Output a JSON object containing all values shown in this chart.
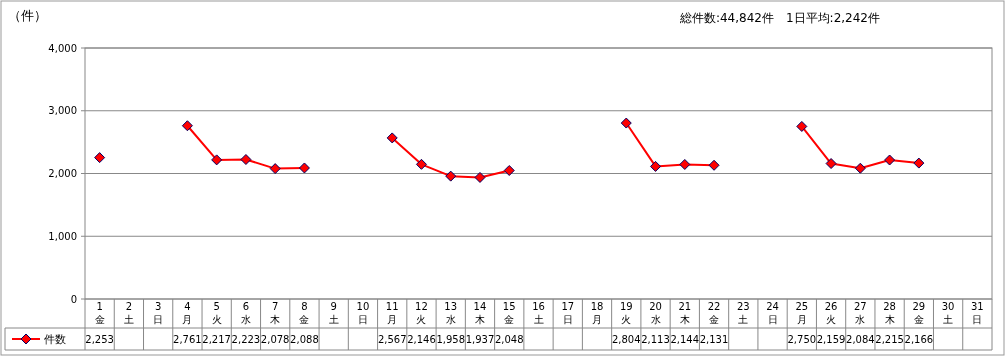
{
  "chart_data": {
    "type": "line",
    "ylabel": "（件）",
    "annotations": [
      "総件数:44,842件　1日平均:2,242件"
    ],
    "categories": [
      "1\n金",
      "2\n土",
      "3\n日",
      "4\n月",
      "5\n火",
      "6\n水",
      "7\n木",
      "8\n金",
      "9\n土",
      "10\n日",
      "11\n月",
      "12\n火",
      "13\n水",
      "14\n木",
      "15\n金",
      "16\n土",
      "17\n日",
      "18\n月",
      "19\n火",
      "20\n水",
      "21\n木",
      "22\n金",
      "23\n土",
      "24\n日",
      "25\n月",
      "26\n火",
      "27\n水",
      "28\n木",
      "29\n金",
      "30\n土",
      "31\n日"
    ],
    "series": [
      {
        "name": "件数",
        "color": "#ff0000",
        "values": [
          2253,
          null,
          null,
          2761,
          2217,
          2223,
          2078,
          2088,
          null,
          null,
          2567,
          2146,
          1958,
          1937,
          2048,
          null,
          null,
          null,
          2804,
          2113,
          2144,
          2131,
          null,
          null,
          2750,
          2159,
          2084,
          2215,
          2166,
          null,
          null
        ],
        "value_labels": [
          "2,253",
          null,
          null,
          "2,761",
          "2,217",
          "2,223",
          "2,078",
          "2,088",
          null,
          null,
          "2,567",
          "2,146",
          "1,958",
          "1,937",
          "2,048",
          null,
          null,
          null,
          "2,804",
          "2,113",
          "2,144",
          "2,131",
          null,
          null,
          "2,750",
          "2,159",
          "2,084",
          "2,215",
          "2,166",
          null,
          null
        ]
      }
    ],
    "ylim": [
      0,
      4000
    ],
    "yticks": [
      0,
      {
        "value": 1000,
        "label": "1,000"
      },
      {
        "value": 2000,
        "label": "2,000"
      },
      {
        "value": 3000,
        "label": "3,000"
      },
      {
        "value": 4000,
        "label": "4,000"
      }
    ],
    "grid": "y",
    "legend": "bottom",
    "marker": "diamond",
    "line_style": "solid"
  }
}
